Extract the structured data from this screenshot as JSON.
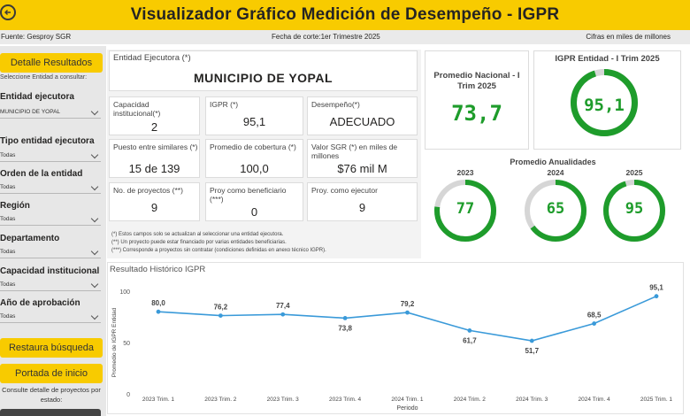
{
  "header": {
    "title": "Visualizador Gráfico Medición de Desempeño - IGPR",
    "source": "Fuente: Gesproy SGR",
    "cutoff": "Fecha de corte:1er Trimestre 2025",
    "units": "Cifras en miles de millones"
  },
  "sidebar": {
    "detail_button": "Detalle Resultados",
    "hint": "Seleccione Entidad a consultar:",
    "filters": [
      {
        "label": "Entidad ejecutora",
        "value": "MUNICIPIO DE YOPAL"
      },
      {
        "label": "Tipo entidad ejecutora",
        "value": "Todas"
      },
      {
        "label": "Orden de la entidad",
        "value": "Todas"
      },
      {
        "label": "Región",
        "value": "Todas"
      },
      {
        "label": "Departamento",
        "value": "Todas"
      },
      {
        "label": "Capacidad institucional",
        "value": "Todas"
      },
      {
        "label": "Año de aprobación",
        "value": "Todas"
      }
    ],
    "restore_button": "Restaura búsqueda",
    "home_button": "Portada de inicio",
    "projects_link": "Consulte detalle de proyectos por estado:"
  },
  "entity": {
    "label": "Entidad Ejecutora (*)",
    "name": "MUNICIPIO DE YOPAL"
  },
  "kpis": [
    {
      "label": "Capacidad institucional(*)",
      "value": "2"
    },
    {
      "label": "IGPR (*)",
      "value": "95,1"
    },
    {
      "label": "Desempeño(*)",
      "value": "ADECUADO"
    },
    {
      "label": "Puesto entre similares (*)",
      "value": "15 de 139"
    },
    {
      "label": "Promedio de cobertura (*)",
      "value": "100,0"
    },
    {
      "label": "Valor SGR (*) en miles de millones",
      "value": "$76 mil M"
    },
    {
      "label": "No. de proyectos (**)",
      "value": "9"
    },
    {
      "label": "Proy como beneficiario (***)",
      "value": "0"
    },
    {
      "label": "Proy. como ejecutor",
      "value": "9"
    }
  ],
  "footnotes": [
    "(*) Estos campos solo se actualizan al seleccionar una entidad ejecutora.",
    "(**) Un proyecto puede estar financiado por varias entidades beneficiarias.",
    "(***) Corresponde a proyectos sin contratar (condiciones definidas en anexo técnico IGPR)."
  ],
  "national": {
    "label": "Promedio Nacional - I Trim 2025",
    "value": "73,7"
  },
  "entity_gauge": {
    "label": "IGPR Entidad - I Trim 2025",
    "value": "95,1",
    "fraction": 0.951
  },
  "annual": {
    "title": "Promedio Anualidades",
    "items": [
      {
        "year": "2023",
        "value": "77",
        "fraction": 0.77
      },
      {
        "year": "2024",
        "value": "65",
        "fraction": 0.65
      },
      {
        "year": "2025",
        "value": "95",
        "fraction": 0.95
      }
    ]
  },
  "colors": {
    "accent": "#f8cb00",
    "green": "#1e9c2b",
    "gauge_bg": "#d6d6d6",
    "line": "#3a9ad9"
  },
  "chart_data": {
    "type": "line",
    "title": "Resultado Histórico IGPR",
    "xlabel": "Periodo",
    "ylabel": "Promedio de IGPR Entidad",
    "ylim": [
      0,
      100
    ],
    "yticks": [
      "0",
      "50",
      "100"
    ],
    "categories": [
      "2023 Trim. 1",
      "2023 Trim. 2",
      "2023 Trim. 3",
      "2023 Trim. 4",
      "2024 Trim. 1",
      "2024 Trim. 2",
      "2024 Trim. 3",
      "2024 Trim. 4",
      "2025 Trim. 1"
    ],
    "values": [
      80.0,
      76.2,
      77.4,
      73.8,
      79.2,
      61.7,
      51.7,
      68.5,
      95.1
    ],
    "value_labels": [
      "80,0",
      "76,2",
      "77,4",
      "73,8",
      "79,2",
      "61,7",
      "51,7",
      "68,5",
      "95,1"
    ]
  }
}
